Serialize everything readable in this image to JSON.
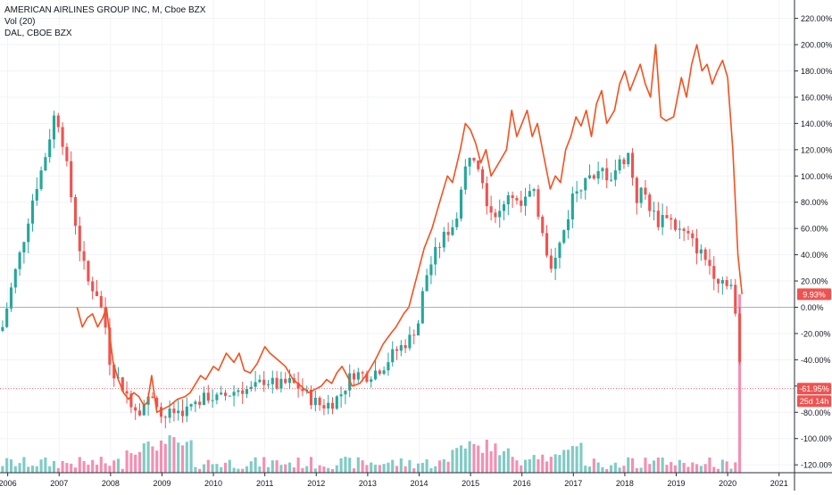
{
  "chart_data": {
    "type": "candlestick+line",
    "legend": [
      "AMERICAN AIRLINES GROUP INC, M, Cboe BZX",
      "Vol (20)",
      "DAL, CBOE BZX"
    ],
    "y_axis": {
      "unit": "%",
      "ticks": [
        "220.00%",
        "200.00%",
        "180.00%",
        "160.00%",
        "140.00%",
        "120.00%",
        "100.00%",
        "80.00%",
        "60.00%",
        "40.00%",
        "20.00%",
        "0.00%",
        "-20.00%",
        "-40.00%",
        "-60.00%",
        "-80.00%",
        "-100.00%",
        "-120.00%"
      ],
      "tick_values": [
        220,
        200,
        180,
        160,
        140,
        120,
        100,
        80,
        60,
        40,
        20,
        0,
        -20,
        -40,
        -60,
        -80,
        -100,
        -120
      ],
      "range": [
        -126,
        234
      ]
    },
    "x_axis": {
      "ticks": [
        "2006",
        "2007",
        "2008",
        "2009",
        "2010",
        "2011",
        "2012",
        "2013",
        "2014",
        "2015",
        "2016",
        "2017",
        "2018",
        "2019",
        "2020",
        "2021"
      ],
      "tick_values": [
        2006,
        2007,
        2008,
        2009,
        2010,
        2011,
        2012,
        2013,
        2014,
        2015,
        2016,
        2017,
        2018,
        2019,
        2020,
        2021
      ],
      "range": [
        2005.85,
        2021.3
      ]
    },
    "price_labels": [
      {
        "text": "9.93%",
        "value": 9.93,
        "color": "#ef5350"
      },
      {
        "text": "-61.95%",
        "value": -61.95,
        "color": "#ef5350"
      },
      {
        "text": "25d 14h",
        "color": "#ef5350"
      }
    ],
    "candle_colors": {
      "up": "#26a69a",
      "down": "#ef5350",
      "volume_up": "#80cbc4",
      "volume_down": "#f48fb1"
    },
    "aal_close_anchors": [
      [
        2005.9,
        -15
      ],
      [
        2006.1,
        20
      ],
      [
        2006.3,
        50
      ],
      [
        2006.5,
        85
      ],
      [
        2006.7,
        110
      ],
      [
        2006.9,
        145
      ],
      [
        2007.0,
        140
      ],
      [
        2007.1,
        120
      ],
      [
        2007.25,
        80
      ],
      [
        2007.4,
        45
      ],
      [
        2007.55,
        20
      ],
      [
        2007.75,
        10
      ],
      [
        2007.9,
        -15
      ],
      [
        2008.0,
        -45
      ],
      [
        2008.15,
        -55
      ],
      [
        2008.3,
        -65
      ],
      [
        2008.45,
        -75
      ],
      [
        2008.55,
        -78
      ],
      [
        2008.7,
        -72
      ],
      [
        2008.85,
        -65
      ],
      [
        2009.0,
        -85
      ],
      [
        2009.2,
        -80
      ],
      [
        2009.5,
        -78
      ],
      [
        2009.7,
        -72
      ],
      [
        2009.9,
        -68
      ],
      [
        2010.1,
        -70
      ],
      [
        2010.3,
        -66
      ],
      [
        2010.5,
        -62
      ],
      [
        2010.75,
        -63
      ],
      [
        2011.0,
        -55
      ],
      [
        2011.25,
        -60
      ],
      [
        2011.5,
        -57
      ],
      [
        2011.7,
        -62
      ],
      [
        2011.9,
        -70
      ],
      [
        2012.1,
        -75
      ],
      [
        2012.3,
        -73
      ],
      [
        2012.5,
        -65
      ],
      [
        2012.7,
        -50
      ],
      [
        2013.0,
        -52
      ],
      [
        2013.3,
        -45
      ],
      [
        2013.5,
        -35
      ],
      [
        2013.8,
        -25
      ],
      [
        2014.0,
        -10
      ],
      [
        2014.1,
        20
      ],
      [
        2014.3,
        40
      ],
      [
        2014.5,
        55
      ],
      [
        2014.7,
        65
      ],
      [
        2014.9,
        105
      ],
      [
        2015.0,
        120
      ],
      [
        2015.1,
        115
      ],
      [
        2015.2,
        105
      ],
      [
        2015.35,
        75
      ],
      [
        2015.6,
        70
      ],
      [
        2015.75,
        90
      ],
      [
        2015.95,
        75
      ],
      [
        2016.05,
        80
      ],
      [
        2016.2,
        90
      ],
      [
        2016.4,
        60
      ],
      [
        2016.5,
        40
      ],
      [
        2016.6,
        30
      ],
      [
        2016.75,
        50
      ],
      [
        2016.9,
        70
      ],
      [
        2017.0,
        88
      ],
      [
        2017.1,
        90
      ],
      [
        2017.25,
        102
      ],
      [
        2017.4,
        95
      ],
      [
        2017.55,
        105
      ],
      [
        2017.7,
        98
      ],
      [
        2017.9,
        110
      ],
      [
        2018.05,
        115
      ],
      [
        2018.1,
        120
      ],
      [
        2018.2,
        80
      ],
      [
        2018.35,
        90
      ],
      [
        2018.5,
        75
      ],
      [
        2018.65,
        65
      ],
      [
        2018.8,
        72
      ],
      [
        2019.0,
        60
      ],
      [
        2019.2,
        55
      ],
      [
        2019.4,
        45
      ],
      [
        2019.6,
        35
      ],
      [
        2019.8,
        22
      ],
      [
        2020.0,
        20
      ],
      [
        2020.1,
        15
      ],
      [
        2020.2,
        -30
      ],
      [
        2020.25,
        -50
      ],
      [
        2020.28,
        -64
      ]
    ],
    "dal_line": [
      [
        2007.35,
        0
      ],
      [
        2007.45,
        -15
      ],
      [
        2007.55,
        -8
      ],
      [
        2007.65,
        -5
      ],
      [
        2007.75,
        -15
      ],
      [
        2007.85,
        -8
      ],
      [
        2007.92,
        0
      ],
      [
        2007.98,
        -20
      ],
      [
        2008.05,
        -42
      ],
      [
        2008.15,
        -55
      ],
      [
        2008.25,
        -65
      ],
      [
        2008.35,
        -70
      ],
      [
        2008.45,
        -65
      ],
      [
        2008.55,
        -68
      ],
      [
        2008.65,
        -75
      ],
      [
        2008.72,
        -72
      ],
      [
        2008.8,
        -52
      ],
      [
        2008.9,
        -80
      ],
      [
        2009.0,
        -78
      ],
      [
        2009.15,
        -75
      ],
      [
        2009.3,
        -70
      ],
      [
        2009.45,
        -68
      ],
      [
        2009.55,
        -65
      ],
      [
        2009.75,
        -52
      ],
      [
        2009.85,
        -55
      ],
      [
        2010.0,
        -45
      ],
      [
        2010.1,
        -48
      ],
      [
        2010.25,
        -35
      ],
      [
        2010.4,
        -42
      ],
      [
        2010.5,
        -35
      ],
      [
        2010.6,
        -48
      ],
      [
        2010.72,
        -50
      ],
      [
        2010.85,
        -43
      ],
      [
        2011.0,
        -30
      ],
      [
        2011.1,
        -35
      ],
      [
        2011.25,
        -40
      ],
      [
        2011.4,
        -45
      ],
      [
        2011.55,
        -55
      ],
      [
        2011.7,
        -60
      ],
      [
        2011.85,
        -65
      ],
      [
        2012.0,
        -62
      ],
      [
        2012.1,
        -60
      ],
      [
        2012.2,
        -55
      ],
      [
        2012.3,
        -58
      ],
      [
        2012.4,
        -50
      ],
      [
        2012.5,
        -45
      ],
      [
        2012.6,
        -52
      ],
      [
        2012.7,
        -60
      ],
      [
        2012.85,
        -58
      ],
      [
        2013.0,
        -50
      ],
      [
        2013.15,
        -40
      ],
      [
        2013.3,
        -28
      ],
      [
        2013.45,
        -20
      ],
      [
        2013.55,
        -15
      ],
      [
        2013.7,
        -5
      ],
      [
        2013.8,
        0
      ],
      [
        2013.9,
        15
      ],
      [
        2014.0,
        30
      ],
      [
        2014.1,
        45
      ],
      [
        2014.25,
        60
      ],
      [
        2014.4,
        80
      ],
      [
        2014.55,
        100
      ],
      [
        2014.65,
        95
      ],
      [
        2014.8,
        120
      ],
      [
        2014.9,
        140
      ],
      [
        2015.0,
        135
      ],
      [
        2015.1,
        125
      ],
      [
        2015.2,
        110
      ],
      [
        2015.3,
        120
      ],
      [
        2015.4,
        100
      ],
      [
        2015.55,
        110
      ],
      [
        2015.7,
        120
      ],
      [
        2015.8,
        150
      ],
      [
        2015.9,
        130
      ],
      [
        2016.0,
        140
      ],
      [
        2016.1,
        150
      ],
      [
        2016.2,
        130
      ],
      [
        2016.3,
        140
      ],
      [
        2016.45,
        110
      ],
      [
        2016.55,
        90
      ],
      [
        2016.65,
        100
      ],
      [
        2016.75,
        95
      ],
      [
        2016.85,
        120
      ],
      [
        2016.95,
        130
      ],
      [
        2017.05,
        145
      ],
      [
        2017.15,
        138
      ],
      [
        2017.25,
        150
      ],
      [
        2017.35,
        130
      ],
      [
        2017.45,
        155
      ],
      [
        2017.55,
        165
      ],
      [
        2017.65,
        140
      ],
      [
        2017.8,
        150
      ],
      [
        2017.9,
        170
      ],
      [
        2018.0,
        180
      ],
      [
        2018.1,
        165
      ],
      [
        2018.2,
        175
      ],
      [
        2018.3,
        185
      ],
      [
        2018.4,
        170
      ],
      [
        2018.5,
        160
      ],
      [
        2018.6,
        200
      ],
      [
        2018.7,
        145
      ],
      [
        2018.8,
        142
      ],
      [
        2018.95,
        145
      ],
      [
        2019.1,
        175
      ],
      [
        2019.2,
        160
      ],
      [
        2019.3,
        185
      ],
      [
        2019.4,
        200
      ],
      [
        2019.5,
        180
      ],
      [
        2019.6,
        185
      ],
      [
        2019.7,
        170
      ],
      [
        2019.8,
        180
      ],
      [
        2019.9,
        188
      ],
      [
        2020.0,
        175
      ],
      [
        2020.1,
        120
      ],
      [
        2020.2,
        40
      ],
      [
        2020.28,
        9.93
      ]
    ]
  }
}
